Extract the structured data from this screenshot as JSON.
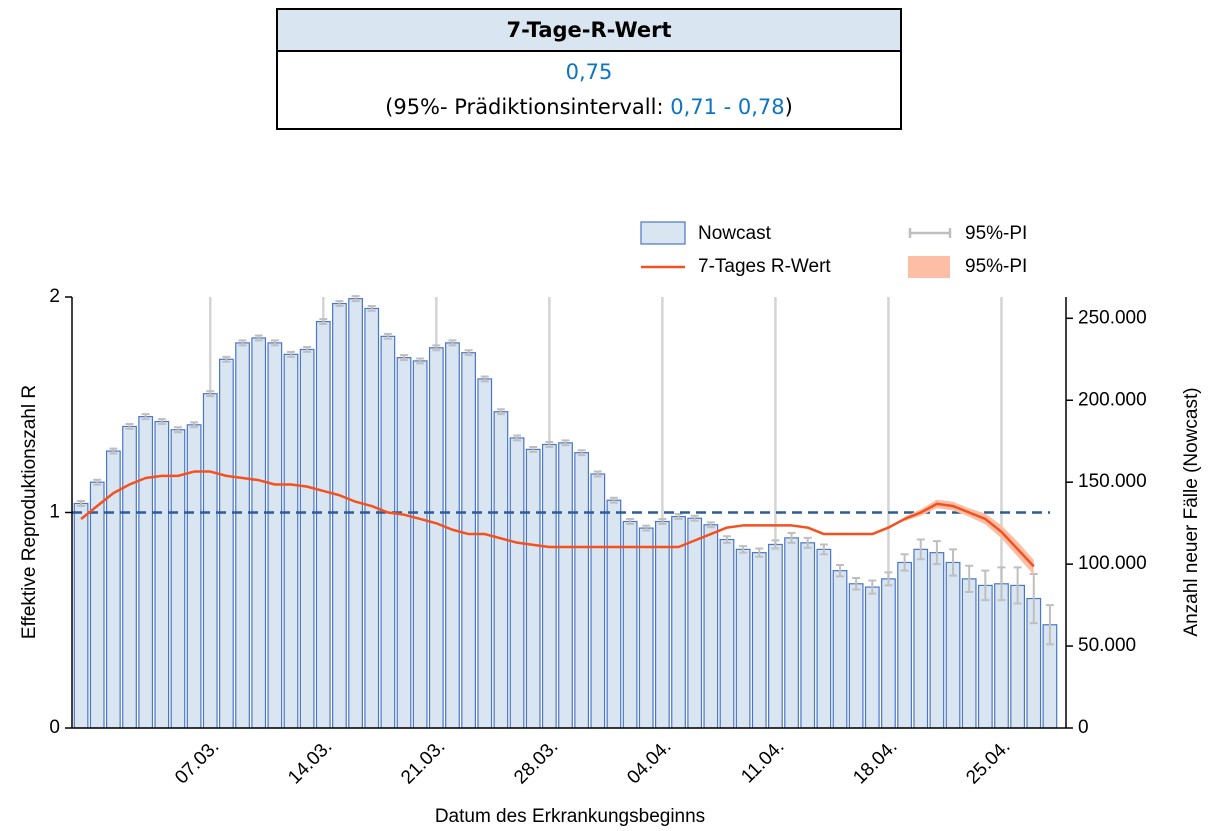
{
  "header_table": {
    "title": "7-Tage-R-Wert",
    "value": "0,75",
    "interval_prefix": "(95%- Prädiktionsintervall: ",
    "interval": "0,71 - 0,78",
    "interval_suffix": ")"
  },
  "chart_data": {
    "type": "bar",
    "xlabel": "Datum des Erkrankungsbeginns",
    "ylabel": "Effektive Reproduktionszahl R",
    "y2label": "Anzahl neuer Fälle (Nowcast)",
    "categories": [
      null,
      null,
      null,
      null,
      null,
      null,
      null,
      null,
      "07.03.",
      null,
      null,
      null,
      null,
      null,
      null,
      "14.03.",
      null,
      null,
      null,
      null,
      null,
      null,
      "21.03.",
      null,
      null,
      null,
      null,
      null,
      null,
      "28.03.",
      null,
      null,
      null,
      null,
      null,
      null,
      "04.04.",
      null,
      null,
      null,
      null,
      null,
      null,
      "11.04.",
      null,
      null,
      null,
      null,
      null,
      null,
      "18.04.",
      null,
      null,
      null,
      null,
      null,
      null,
      "25.04.",
      null,
      null,
      null
    ],
    "ylim": [
      0,
      2
    ],
    "yticks": [
      0,
      1,
      2
    ],
    "y2lim": [
      0,
      263000
    ],
    "y2ticks": [
      0,
      {
        "value": 50000,
        "label": "50.000"
      },
      {
        "value": 100000,
        "label": "100.000"
      },
      {
        "value": 150000,
        "label": "150.000"
      },
      {
        "value": 200000,
        "label": "200.000"
      },
      {
        "value": 250000,
        "label": "250.000"
      }
    ],
    "xgrid": true,
    "hline": {
      "value": 1,
      "color": "#2e5c9a"
    },
    "series": [
      {
        "name": "Nowcast",
        "type": "bar",
        "axis": "y2",
        "color": "#dae5f2",
        "edge_color": "#4a76c6",
        "values": [
          137000,
          150000,
          169000,
          184000,
          190000,
          187000,
          182000,
          185000,
          204000,
          225000,
          235000,
          238000,
          235000,
          228000,
          231000,
          248000,
          259000,
          262000,
          256000,
          239000,
          226000,
          224000,
          232000,
          235000,
          229000,
          213000,
          193000,
          177000,
          170000,
          173000,
          174000,
          168000,
          155000,
          139000,
          126000,
          122000,
          126000,
          129000,
          128000,
          124000,
          115000,
          109000,
          107000,
          112000,
          116000,
          113000,
          109000,
          96000,
          88000,
          86000,
          91000,
          101000,
          109000,
          107000,
          101000,
          91000,
          87000,
          88000,
          87000,
          79000,
          63000
        ],
        "error_name": "95%-PI",
        "error_color": "#bfbfbf",
        "errors": [
          1500,
          1500,
          1500,
          1500,
          1500,
          1500,
          1500,
          1500,
          1500,
          1500,
          1500,
          1500,
          1500,
          1500,
          1500,
          1500,
          1500,
          1500,
          1500,
          1500,
          1500,
          1500,
          1500,
          1500,
          1500,
          1500,
          1500,
          1500,
          1500,
          1500,
          1500,
          1500,
          1500,
          1500,
          1500,
          1500,
          1500,
          1500,
          1500,
          1500,
          2000,
          2000,
          2500,
          2500,
          3000,
          3000,
          3000,
          3500,
          3500,
          4000,
          4000,
          5000,
          6000,
          7000,
          8000,
          8000,
          9000,
          10000,
          11000,
          15000,
          12000
        ]
      },
      {
        "name": "7-Tages R-Wert",
        "type": "line",
        "axis": "y",
        "color": "#f4511e",
        "values": [
          0.97,
          1.03,
          1.09,
          1.13,
          1.16,
          1.17,
          1.17,
          1.19,
          1.19,
          1.17,
          1.16,
          1.15,
          1.13,
          1.13,
          1.12,
          1.1,
          1.08,
          1.05,
          1.03,
          1.0,
          0.99,
          0.97,
          0.95,
          0.92,
          0.9,
          0.9,
          0.88,
          0.86,
          0.85,
          0.84,
          0.84,
          0.84,
          0.84,
          0.84,
          0.84,
          0.84,
          0.84,
          0.84,
          0.87,
          0.9,
          0.93,
          0.94,
          0.94,
          0.94,
          0.94,
          0.93,
          0.9,
          0.9,
          0.9,
          0.9,
          0.93,
          0.97,
          1.0,
          1.04,
          1.03,
          1.0,
          0.97,
          0.91,
          0.83,
          0.75,
          null
        ],
        "band_name": "95%-PI",
        "band_color": "#fcbfa5",
        "band_high": [
          null,
          null,
          null,
          null,
          null,
          null,
          null,
          null,
          null,
          null,
          null,
          null,
          null,
          null,
          null,
          null,
          null,
          null,
          null,
          null,
          null,
          null,
          null,
          null,
          null,
          null,
          null,
          null,
          null,
          null,
          null,
          null,
          null,
          null,
          null,
          null,
          null,
          null,
          null,
          null,
          null,
          null,
          null,
          null,
          null,
          null,
          null,
          null,
          null,
          null,
          null,
          0.98,
          1.015,
          1.06,
          1.05,
          1.02,
          0.995,
          0.94,
          0.865,
          0.78,
          null
        ],
        "band_low": [
          null,
          null,
          null,
          null,
          null,
          null,
          null,
          null,
          null,
          null,
          null,
          null,
          null,
          null,
          null,
          null,
          null,
          null,
          null,
          null,
          null,
          null,
          null,
          null,
          null,
          null,
          null,
          null,
          null,
          null,
          null,
          null,
          null,
          null,
          null,
          null,
          null,
          null,
          null,
          null,
          null,
          null,
          null,
          null,
          null,
          null,
          null,
          null,
          null,
          null,
          null,
          0.96,
          0.985,
          1.02,
          1.01,
          0.98,
          0.945,
          0.88,
          0.795,
          0.71,
          null
        ]
      }
    ]
  }
}
